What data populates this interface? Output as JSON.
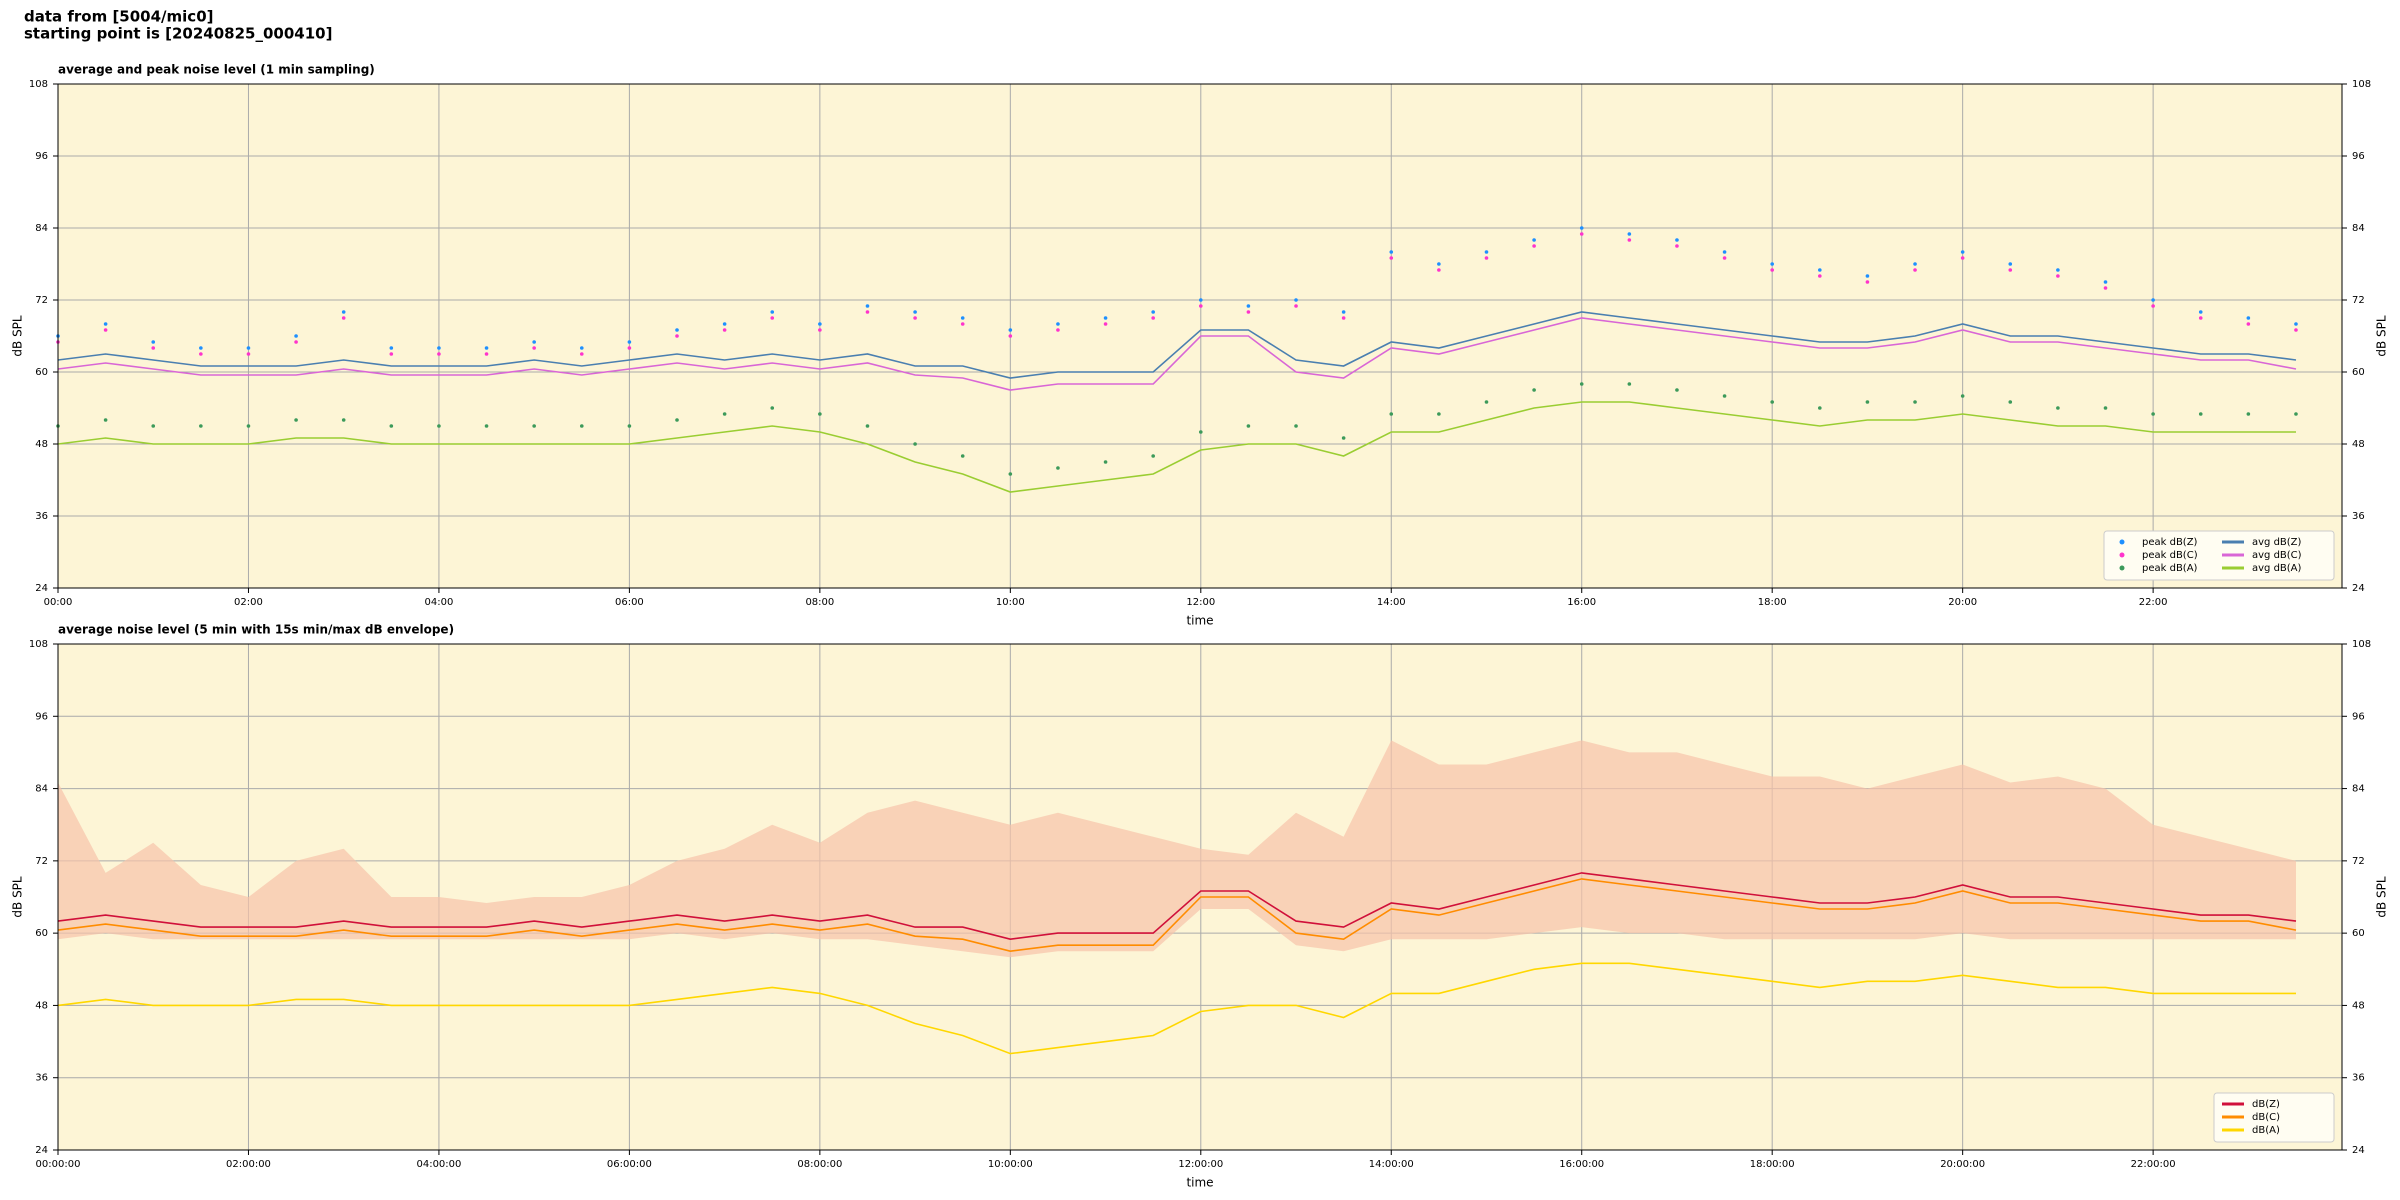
{
  "header": {
    "line1": "data from [5004/mic0]",
    "line2": "starting point is [20240825_000410]"
  },
  "chart_data": [
    {
      "type": "line",
      "title": "average and peak noise level (1 min sampling)",
      "x_label": "time",
      "y_label": "dB SPL",
      "x": [
        "00:00",
        "00:30",
        "01:00",
        "01:30",
        "02:00",
        "02:30",
        "03:00",
        "03:30",
        "04:00",
        "04:30",
        "05:00",
        "05:30",
        "06:00",
        "06:30",
        "07:00",
        "07:30",
        "08:00",
        "08:30",
        "09:00",
        "09:30",
        "10:00",
        "10:30",
        "11:00",
        "11:30",
        "12:00",
        "12:30",
        "13:00",
        "13:30",
        "14:00",
        "14:30",
        "15:00",
        "15:30",
        "16:00",
        "16:30",
        "17:00",
        "17:30",
        "18:00",
        "18:30",
        "19:00",
        "19:30",
        "20:00",
        "20:30",
        "21:00",
        "21:30",
        "22:00",
        "22:30",
        "23:00",
        "23:30"
      ],
      "xlim": [
        "00:00",
        "23:59"
      ],
      "xticks": [
        "00:00",
        "02:00",
        "04:00",
        "06:00",
        "08:00",
        "10:00",
        "12:00",
        "14:00",
        "16:00",
        "18:00",
        "20:00",
        "22:00"
      ],
      "ylim": [
        24,
        108
      ],
      "yticks": [
        24,
        36,
        48,
        60,
        72,
        84,
        96,
        108
      ],
      "grid": true,
      "legend": "lower right",
      "legend_columns": 2,
      "series": [
        {
          "name": "peak dB(Z)",
          "color": "#1e90ff",
          "mark": "dot",
          "values": [
            66,
            68,
            65,
            64,
            64,
            66,
            70,
            64,
            64,
            64,
            65,
            64,
            65,
            67,
            68,
            70,
            68,
            71,
            70,
            69,
            67,
            68,
            69,
            70,
            72,
            71,
            72,
            70,
            80,
            78,
            80,
            82,
            84,
            83,
            82,
            80,
            78,
            77,
            76,
            78,
            80,
            78,
            77,
            75,
            72,
            70,
            69,
            68
          ]
        },
        {
          "name": "peak dB(C)",
          "color": "#ff33cc",
          "mark": "dot",
          "values": [
            65,
            67,
            64,
            63,
            63,
            65,
            69,
            63,
            63,
            63,
            64,
            63,
            64,
            66,
            67,
            69,
            67,
            70,
            69,
            68,
            66,
            67,
            68,
            69,
            71,
            70,
            71,
            69,
            79,
            77,
            79,
            81,
            83,
            82,
            81,
            79,
            77,
            76,
            75,
            77,
            79,
            77,
            76,
            74,
            71,
            69,
            68,
            67
          ]
        },
        {
          "name": "peak dB(A)",
          "color": "#3c9a5a",
          "mark": "dot",
          "values": [
            51,
            52,
            51,
            51,
            51,
            52,
            52,
            51,
            51,
            51,
            51,
            51,
            51,
            52,
            53,
            54,
            53,
            51,
            48,
            46,
            43,
            44,
            45,
            46,
            50,
            51,
            51,
            49,
            53,
            53,
            55,
            57,
            58,
            58,
            57,
            56,
            55,
            54,
            55,
            55,
            56,
            55,
            54,
            54,
            53,
            53,
            53,
            53
          ]
        },
        {
          "name": "avg dB(Z)",
          "color": "#4a7fb0",
          "mark": "line",
          "values": [
            62,
            63,
            62,
            61,
            61,
            61,
            62,
            61,
            61,
            61,
            62,
            61,
            62,
            63,
            62,
            63,
            62,
            63,
            61,
            61,
            59,
            60,
            60,
            60,
            67,
            67,
            62,
            61,
            65,
            64,
            66,
            68,
            70,
            69,
            68,
            67,
            66,
            65,
            65,
            66,
            68,
            66,
            66,
            65,
            64,
            63,
            63,
            62
          ]
        },
        {
          "name": "avg dB(C)",
          "color": "#d966d6",
          "mark": "line",
          "values": [
            60.5,
            61.5,
            60.5,
            59.5,
            59.5,
            59.5,
            60.5,
            59.5,
            59.5,
            59.5,
            60.5,
            59.5,
            60.5,
            61.5,
            60.5,
            61.5,
            60.5,
            61.5,
            59.5,
            59,
            57,
            58,
            58,
            58,
            66,
            66,
            60,
            59,
            64,
            63,
            65,
            67,
            69,
            68,
            67,
            66,
            65,
            64,
            64,
            65,
            67,
            65,
            65,
            64,
            63,
            62,
            62,
            60.5
          ]
        },
        {
          "name": "avg dB(A)",
          "color": "#9acd32",
          "mark": "line",
          "values": [
            48,
            49,
            48,
            48,
            48,
            49,
            49,
            48,
            48,
            48,
            48,
            48,
            48,
            49,
            50,
            51,
            50,
            48,
            45,
            43,
            40,
            41,
            42,
            43,
            47,
            48,
            48,
            46,
            50,
            50,
            52,
            54,
            55,
            55,
            54,
            53,
            52,
            51,
            52,
            52,
            53,
            52,
            51,
            51,
            50,
            50,
            50,
            50
          ]
        }
      ]
    },
    {
      "type": "line",
      "title": "average noise level (5 min with 15s min/max dB envelope)",
      "x_label": "time",
      "y_label": "dB SPL",
      "x": [
        "00:00:00",
        "00:30:00",
        "01:00:00",
        "01:30:00",
        "02:00:00",
        "02:30:00",
        "03:00:00",
        "03:30:00",
        "04:00:00",
        "04:30:00",
        "05:00:00",
        "05:30:00",
        "06:00:00",
        "06:30:00",
        "07:00:00",
        "07:30:00",
        "08:00:00",
        "08:30:00",
        "09:00:00",
        "09:30:00",
        "10:00:00",
        "10:30:00",
        "11:00:00",
        "11:30:00",
        "12:00:00",
        "12:30:00",
        "13:00:00",
        "13:30:00",
        "14:00:00",
        "14:30:00",
        "15:00:00",
        "15:30:00",
        "16:00:00",
        "16:30:00",
        "17:00:00",
        "17:30:00",
        "18:00:00",
        "18:30:00",
        "19:00:00",
        "19:30:00",
        "20:00:00",
        "20:30:00",
        "21:00:00",
        "21:30:00",
        "22:00:00",
        "22:30:00",
        "23:00:00",
        "23:30:00"
      ],
      "xlim": [
        "00:00:00",
        "23:59:00"
      ],
      "xticks": [
        "00:00:00",
        "02:00:00",
        "04:00:00",
        "06:00:00",
        "08:00:00",
        "10:00:00",
        "12:00:00",
        "14:00:00",
        "16:00:00",
        "18:00:00",
        "20:00:00",
        "22:00:00"
      ],
      "ylim": [
        24,
        108
      ],
      "yticks": [
        24,
        36,
        48,
        60,
        72,
        84,
        96,
        108
      ],
      "grid": true,
      "legend": "lower right",
      "legend_columns": 1,
      "envelope": {
        "color": "#f6c3aa",
        "min": [
          59,
          60,
          59,
          59,
          59,
          59,
          59,
          59,
          59,
          59,
          59,
          59,
          59,
          60,
          59,
          60,
          59,
          59,
          58,
          57,
          56,
          57,
          57,
          57,
          64,
          64,
          58,
          57,
          59,
          59,
          59,
          60,
          61,
          60,
          60,
          59,
          59,
          59,
          59,
          59,
          60,
          59,
          59,
          59,
          59,
          59,
          59,
          59
        ],
        "max": [
          85,
          70,
          75,
          68,
          66,
          72,
          74,
          66,
          66,
          65,
          66,
          66,
          68,
          72,
          74,
          78,
          75,
          80,
          82,
          80,
          78,
          80,
          78,
          76,
          74,
          73,
          80,
          76,
          92,
          88,
          88,
          90,
          92,
          90,
          90,
          88,
          86,
          86,
          84,
          86,
          88,
          85,
          86,
          84,
          78,
          76,
          74,
          72
        ]
      },
      "series": [
        {
          "name": "dB(Z)",
          "color": "#d0103a",
          "mark": "line",
          "values": [
            62,
            63,
            62,
            61,
            61,
            61,
            62,
            61,
            61,
            61,
            62,
            61,
            62,
            63,
            62,
            63,
            62,
            63,
            61,
            61,
            59,
            60,
            60,
            60,
            67,
            67,
            62,
            61,
            65,
            64,
            66,
            68,
            70,
            69,
            68,
            67,
            66,
            65,
            65,
            66,
            68,
            66,
            66,
            65,
            64,
            63,
            63,
            62
          ]
        },
        {
          "name": "dB(C)",
          "color": "#ff8c00",
          "mark": "line",
          "values": [
            60.5,
            61.5,
            60.5,
            59.5,
            59.5,
            59.5,
            60.5,
            59.5,
            59.5,
            59.5,
            60.5,
            59.5,
            60.5,
            61.5,
            60.5,
            61.5,
            60.5,
            61.5,
            59.5,
            59,
            57,
            58,
            58,
            58,
            66,
            66,
            60,
            59,
            64,
            63,
            65,
            67,
            69,
            68,
            67,
            66,
            65,
            64,
            64,
            65,
            67,
            65,
            65,
            64,
            63,
            62,
            62,
            60.5
          ]
        },
        {
          "name": "dB(A)",
          "color": "#ffd700",
          "mark": "line",
          "values": [
            48,
            49,
            48,
            48,
            48,
            49,
            49,
            48,
            48,
            48,
            48,
            48,
            48,
            49,
            50,
            51,
            50,
            48,
            45,
            43,
            40,
            41,
            42,
            43,
            47,
            48,
            48,
            46,
            50,
            50,
            52,
            54,
            55,
            55,
            54,
            53,
            52,
            51,
            52,
            52,
            53,
            52,
            51,
            51,
            50,
            50,
            50,
            50
          ]
        }
      ]
    }
  ]
}
